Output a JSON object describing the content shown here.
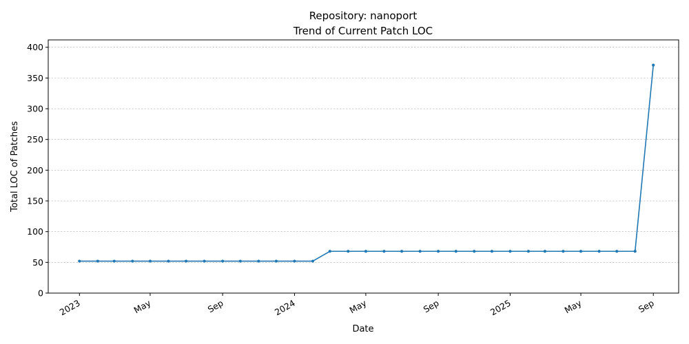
{
  "chart_data": {
    "type": "line",
    "title": "Repository: nanoport",
    "subtitle": "Trend of Current Patch LOC",
    "xlabel": "Date",
    "ylabel": "Total LOC of Patches",
    "ylim": [
      0,
      412
    ],
    "xlim": [
      "2022-11-09",
      "2025-10-14"
    ],
    "grid": "y-only",
    "color": "#1f77b4",
    "y_ticks": [
      0,
      50,
      100,
      150,
      200,
      250,
      300,
      350,
      400
    ],
    "x_ticks": [
      {
        "date": "2023-01-01",
        "label": "2023"
      },
      {
        "date": "2023-05-01",
        "label": "May"
      },
      {
        "date": "2023-09-01",
        "label": "Sep"
      },
      {
        "date": "2024-01-01",
        "label": "2024"
      },
      {
        "date": "2024-05-01",
        "label": "May"
      },
      {
        "date": "2024-09-01",
        "label": "Sep"
      },
      {
        "date": "2025-01-01",
        "label": "2025"
      },
      {
        "date": "2025-05-01",
        "label": "May"
      },
      {
        "date": "2025-09-01",
        "label": "Sep"
      }
    ],
    "series": [
      {
        "x": [
          "2023-01-01",
          "2023-02-01",
          "2023-03-01",
          "2023-04-01",
          "2023-05-01",
          "2023-06-01",
          "2023-07-01",
          "2023-08-01",
          "2023-09-01",
          "2023-10-01",
          "2023-11-01",
          "2023-12-01",
          "2024-01-01",
          "2024-02-01",
          "2024-03-01",
          "2024-04-01",
          "2024-05-01",
          "2024-06-01",
          "2024-07-01",
          "2024-08-01",
          "2024-09-01",
          "2024-10-01",
          "2024-11-01",
          "2024-12-01",
          "2025-01-01",
          "2025-02-01",
          "2025-03-01",
          "2025-04-01",
          "2025-05-01",
          "2025-06-01",
          "2025-07-01",
          "2025-08-01",
          "2025-09-01"
        ],
        "values": [
          52,
          52,
          52,
          52,
          52,
          52,
          52,
          52,
          52,
          52,
          52,
          52,
          52,
          52,
          68,
          68,
          68,
          68,
          68,
          68,
          68,
          68,
          68,
          68,
          68,
          68,
          68,
          68,
          68,
          68,
          68,
          68,
          371
        ]
      }
    ]
  }
}
